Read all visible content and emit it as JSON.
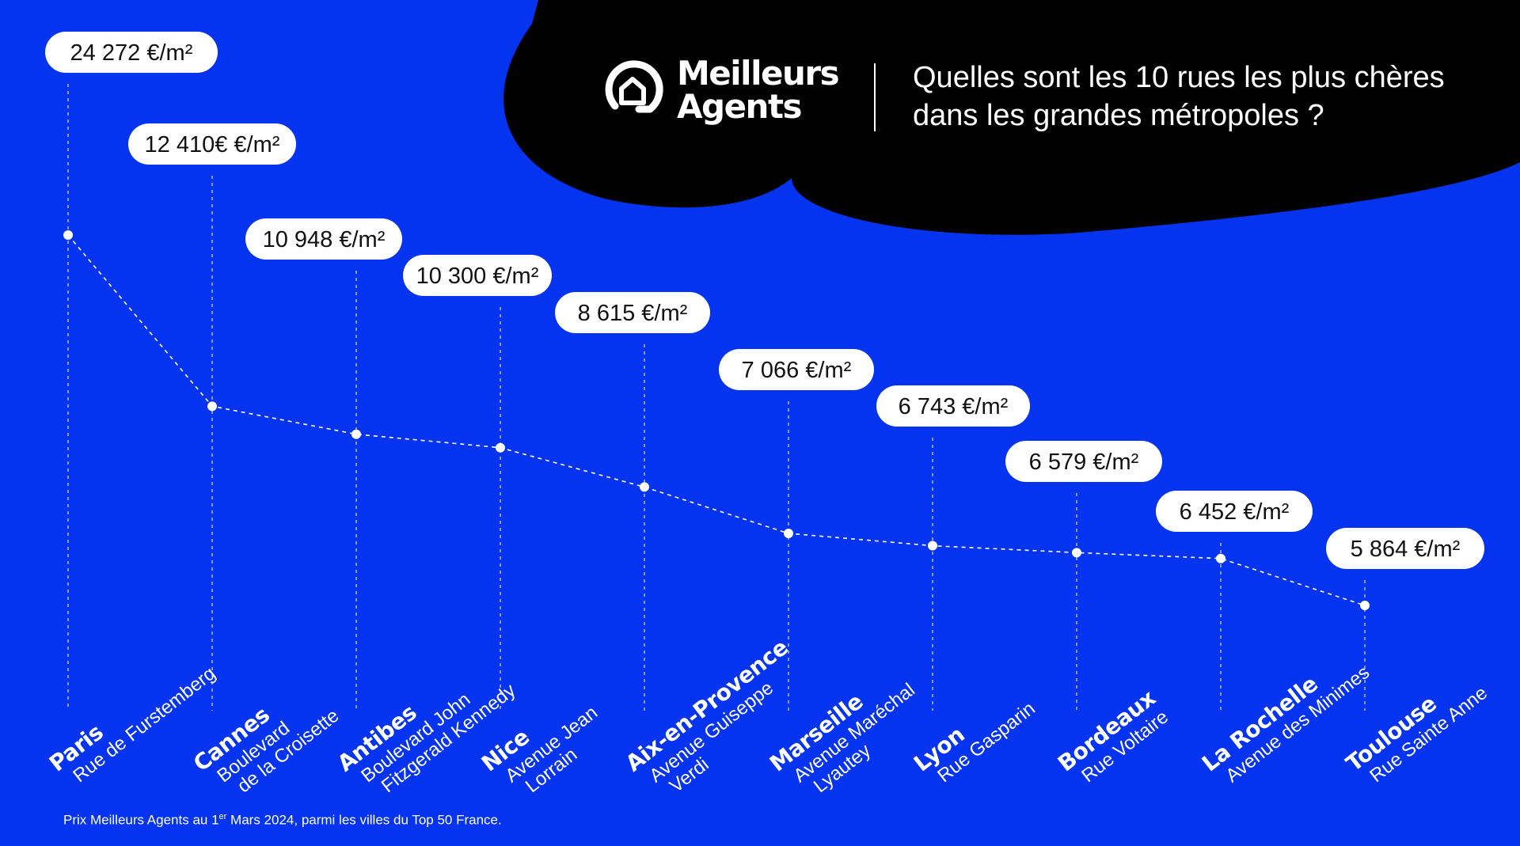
{
  "brand": {
    "name_line1": "Meilleurs",
    "name_line2": "Agents",
    "colors": {
      "background": "#0534F0",
      "header_blob": "#000000",
      "text": "#FFFFFF",
      "pill": "#FFFFFF"
    }
  },
  "headline": {
    "line1": "Quelles sont les 10 rues les plus chères",
    "line2": "dans les grandes métropoles ?"
  },
  "footnote": {
    "before": "Prix Meilleurs Agents au 1",
    "sup": "er",
    "after": " Mars 2024, parmi les villes du Top 50 France."
  },
  "chart_data": {
    "type": "line",
    "unit": "€/m²",
    "grid": false,
    "legend": "none",
    "ylim": [
      0,
      25000
    ],
    "points": [
      {
        "city": "Paris",
        "street": [
          "Rue de Furstemberg"
        ],
        "value": 24272,
        "label": "24 272 €/m²"
      },
      {
        "city": "Cannes",
        "street": [
          "Boulevard",
          "de la Croisette"
        ],
        "value": 12410,
        "label": "12 410€ €/m²"
      },
      {
        "city": "Antibes",
        "street": [
          "Boulevard John",
          "Fitzgerald Kennedy"
        ],
        "value": 10948,
        "label": "10 948 €/m²"
      },
      {
        "city": "Nice",
        "street": [
          "Avenue Jean",
          "Lorrain"
        ],
        "value": 10300,
        "label": "10 300 €/m²"
      },
      {
        "city": "Aix-en-Provence",
        "street": [
          "Avenue Guiseppe",
          "Verdi"
        ],
        "value": 8615,
        "label": "8 615 €/m²"
      },
      {
        "city": "Marseille",
        "street": [
          "Avenue Maréchal",
          "Lyautey"
        ],
        "value": 7066,
        "label": "7 066 €/m²"
      },
      {
        "city": "Lyon",
        "street": [
          "Rue Gasparin"
        ],
        "value": 6743,
        "label": "6 743 €/m²"
      },
      {
        "city": "Bordeaux",
        "street": [
          "Rue Voltaire"
        ],
        "value": 6579,
        "label": "6 579 €/m²"
      },
      {
        "city": "La Rochelle",
        "street": [
          "Avenue des Minimes"
        ],
        "value": 6452,
        "label": "6 452 €/m²"
      },
      {
        "city": "Toulouse",
        "street": [
          "Rue Sainte Anne"
        ],
        "value": 5864,
        "label": "5 864 €/m²"
      }
    ]
  }
}
